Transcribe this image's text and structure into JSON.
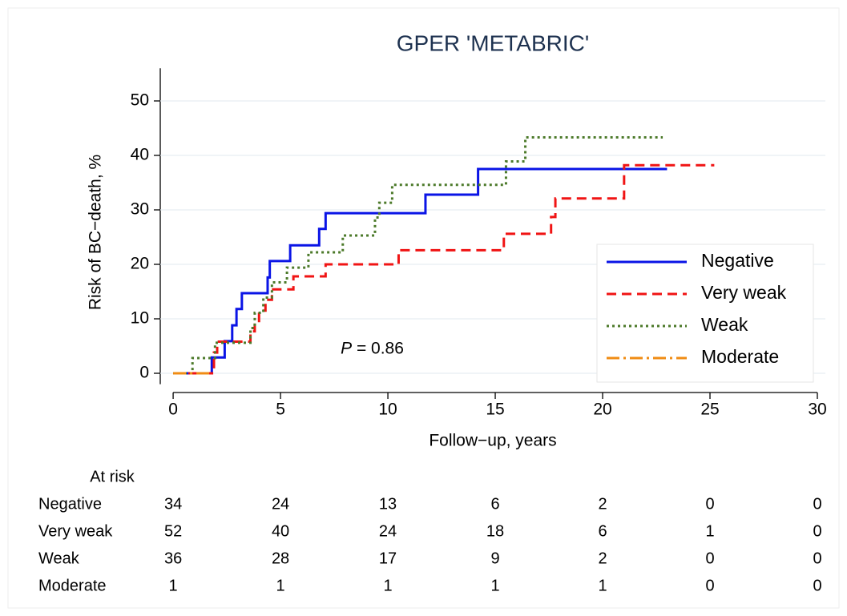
{
  "chart_data": {
    "type": "step",
    "title": "GPER 'METABRIC'",
    "x_label": "Follow−up, years",
    "y_label": "Risk of BC−death, %",
    "xlim": [
      -0.6,
      30
    ],
    "ylim": [
      -2,
      56
    ],
    "xticks": [
      0,
      5,
      10,
      15,
      20,
      25,
      30
    ],
    "yticks": [
      0,
      10,
      20,
      30,
      40,
      50
    ],
    "grid": true,
    "legend": "lower right",
    "annotation": {
      "italic": "P",
      "text": " = 0.86",
      "x": 7.8,
      "y": 4.5
    },
    "series": [
      {
        "name": "Negative",
        "color": "#0a14e6",
        "dash": "",
        "x": [
          0,
          1.8,
          2.4,
          2.75,
          2.95,
          3.2,
          4.4,
          4.5,
          5.45,
          6.8,
          7.1,
          11.75,
          14.2,
          23.0
        ],
        "values": [
          0,
          2.9,
          5.9,
          8.8,
          11.8,
          14.7,
          17.6,
          20.6,
          23.5,
          26.5,
          29.4,
          32.8,
          37.5,
          37.5
        ]
      },
      {
        "name": "Very weak",
        "color": "#f01414",
        "dash": "12 7",
        "x": [
          0,
          1.9,
          2.05,
          3.6,
          3.8,
          4.0,
          4.3,
          4.6,
          5.6,
          7.1,
          10.5,
          15.4,
          17.6,
          17.8,
          21.0,
          25.2
        ],
        "values": [
          0,
          3.8,
          5.8,
          7.7,
          9.6,
          11.5,
          13.5,
          15.4,
          17.8,
          20.0,
          22.6,
          25.6,
          28.7,
          32.1,
          38.2,
          38.2
        ]
      },
      {
        "name": "Weak",
        "color": "#4c7a2a",
        "dash": "3 4",
        "x": [
          0,
          0.9,
          1.95,
          3.6,
          3.8,
          4.2,
          4.6,
          5.3,
          6.3,
          7.9,
          9.4,
          9.6,
          10.2,
          15.5,
          16.4,
          22.8
        ],
        "values": [
          0,
          2.8,
          5.6,
          8.3,
          11.1,
          13.9,
          16.7,
          19.4,
          22.2,
          25.3,
          28.6,
          31.3,
          34.6,
          38.9,
          43.3,
          43.3
        ]
      },
      {
        "name": "Moderate",
        "color": "#f08c14",
        "dash": "16 5 3 5",
        "x": [
          0,
          1.8
        ],
        "values": [
          0,
          0
        ]
      }
    ],
    "at_risk": {
      "title": "At risk",
      "times": [
        0,
        5,
        10,
        15,
        20,
        25,
        30
      ],
      "rows": [
        {
          "name": "Negative",
          "values": [
            34,
            24,
            13,
            6,
            2,
            0,
            0
          ]
        },
        {
          "name": "Very weak",
          "values": [
            52,
            40,
            24,
            18,
            6,
            1,
            0
          ]
        },
        {
          "name": "Weak",
          "values": [
            36,
            28,
            17,
            9,
            2,
            0,
            0
          ]
        },
        {
          "name": "Moderate",
          "values": [
            1,
            1,
            1,
            1,
            1,
            0,
            0
          ]
        }
      ]
    }
  }
}
